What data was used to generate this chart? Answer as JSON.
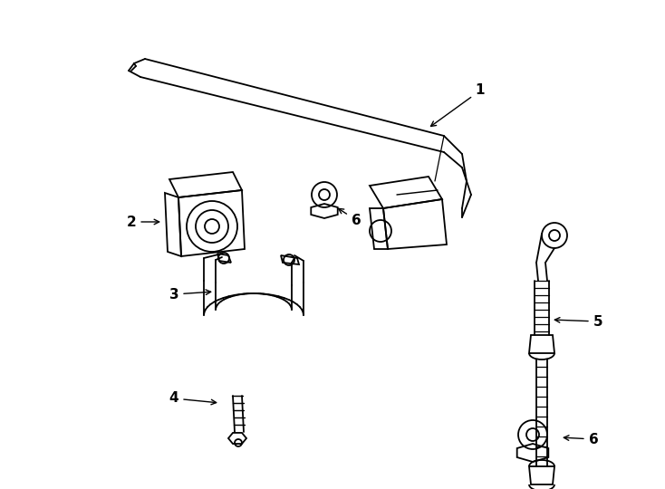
{
  "background_color": "#ffffff",
  "line_color": "#000000",
  "lw": 1.3,
  "figsize": [
    7.34,
    5.4
  ],
  "dpi": 100
}
